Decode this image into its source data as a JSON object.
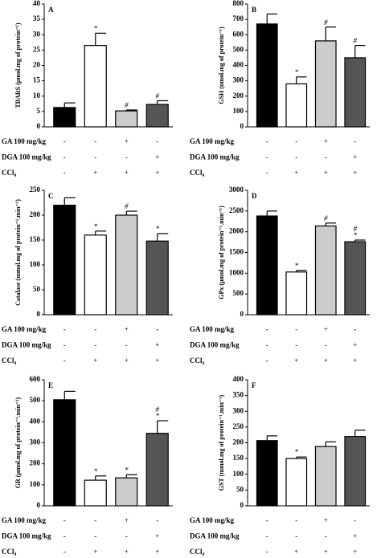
{
  "chart_data": [
    {
      "type": "bar",
      "panel_label": "A",
      "y_label": "TBARS (μmol.mg of protein⁻¹)",
      "values": [
        6.3,
        26.5,
        5.2,
        7.3
      ],
      "errors": [
        1.5,
        4,
        0.3,
        1.2
      ],
      "colors": [
        "#000000",
        "#ffffff",
        "#cccccc",
        "#555555"
      ],
      "annotations": [
        null,
        [
          "*"
        ],
        [
          "#"
        ],
        [
          "#"
        ]
      ],
      "ylim": [
        0,
        40
      ],
      "yticks": [
        0,
        5,
        10,
        15,
        20,
        25,
        30,
        35,
        40
      ],
      "treatments": [
        {
          "label": "GA 100 mg/kg",
          "marks": [
            "-",
            "-",
            "+",
            "-"
          ]
        },
        {
          "label": "DGA 100 mg/kg",
          "marks": [
            "-",
            "-",
            "-",
            "+"
          ]
        },
        {
          "label": "CCl₄",
          "marks": [
            "-",
            "+",
            "+",
            "+"
          ]
        }
      ]
    },
    {
      "type": "bar",
      "panel_label": "B",
      "y_label": "GSH (nmol.mg of protein⁻¹)",
      "values": [
        670,
        280,
        560,
        450
      ],
      "errors": [
        65,
        45,
        90,
        80
      ],
      "colors": [
        "#000000",
        "#ffffff",
        "#cccccc",
        "#555555"
      ],
      "annotations": [
        null,
        [
          "*"
        ],
        [
          "#"
        ],
        [
          "#"
        ]
      ],
      "ylim": [
        0,
        800
      ],
      "yticks": [
        0,
        100,
        200,
        300,
        400,
        500,
        600,
        700,
        800
      ],
      "treatments": [
        {
          "label": "GA 100 mg/kg",
          "marks": [
            "-",
            "-",
            "+",
            "-"
          ]
        },
        {
          "label": "DGA 100 mg/kg",
          "marks": [
            "-",
            "-",
            "-",
            "+"
          ]
        },
        {
          "label": "CCl₄",
          "marks": [
            "-",
            "+",
            "+",
            "+"
          ]
        }
      ]
    },
    {
      "type": "bar",
      "panel_label": "C",
      "y_label": "Catalase (mmol.mg of protein⁻¹.min⁻¹)",
      "values": [
        220,
        160,
        200,
        148
      ],
      "errors": [
        15,
        8,
        8,
        15
      ],
      "colors": [
        "#000000",
        "#ffffff",
        "#cccccc",
        "#555555"
      ],
      "annotations": [
        null,
        [
          "*"
        ],
        [
          "#"
        ],
        [
          "*"
        ]
      ],
      "ylim": [
        0,
        250
      ],
      "yticks": [
        0,
        50,
        100,
        150,
        200,
        250
      ],
      "treatments": [
        {
          "label": "GA 100 mg/kg",
          "marks": [
            "-",
            "-",
            "+",
            "-"
          ]
        },
        {
          "label": "DGA 100 mg/kg",
          "marks": [
            "-",
            "-",
            "-",
            "+"
          ]
        },
        {
          "label": "CCl₄",
          "marks": [
            "-",
            "+",
            "+",
            "+"
          ]
        }
      ]
    },
    {
      "type": "bar",
      "panel_label": "D",
      "y_label": "GPx (μmol.mg of protein⁻¹.min⁻¹)",
      "values": [
        2380,
        1030,
        2140,
        1760
      ],
      "errors": [
        120,
        40,
        70,
        40
      ],
      "colors": [
        "#000000",
        "#ffffff",
        "#cccccc",
        "#555555"
      ],
      "annotations": [
        null,
        [
          "*"
        ],
        [
          "#"
        ],
        [
          "#",
          "*"
        ]
      ],
      "ylim": [
        0,
        3000
      ],
      "yticks": [
        0,
        500,
        1000,
        1500,
        2000,
        2500,
        3000
      ],
      "treatments": [
        {
          "label": "GA 100 mg/kg",
          "marks": [
            "-",
            "-",
            "+",
            "-"
          ]
        },
        {
          "label": "DGA 100 mg/kg",
          "marks": [
            "-",
            "-",
            "-",
            "+"
          ]
        },
        {
          "label": "CCl₄",
          "marks": [
            "-",
            "+",
            "+",
            "+"
          ]
        }
      ]
    },
    {
      "type": "bar",
      "panel_label": "E",
      "y_label": "GR (μmol.mg of protein⁻¹.min⁻¹)",
      "values": [
        505,
        122,
        133,
        345
      ],
      "errors": [
        40,
        20,
        15,
        60
      ],
      "colors": [
        "#000000",
        "#ffffff",
        "#cccccc",
        "#555555"
      ],
      "annotations": [
        null,
        [
          "*"
        ],
        [
          "*"
        ],
        [
          "#",
          "*"
        ]
      ],
      "ylim": [
        0,
        600
      ],
      "yticks": [
        0,
        100,
        200,
        300,
        400,
        500,
        600
      ],
      "treatments": [
        {
          "label": "GA 100 mg/kg",
          "marks": [
            "-",
            "-",
            "+",
            "-"
          ]
        },
        {
          "label": "DGA 100 mg/kg",
          "marks": [
            "-",
            "-",
            "-",
            "+"
          ]
        },
        {
          "label": "CCl₄",
          "marks": [
            "-",
            "+",
            "+",
            "+"
          ]
        }
      ]
    },
    {
      "type": "bar",
      "panel_label": "F",
      "y_label": "GST (mmol.mg of protein⁻¹.min⁻¹)",
      "values": [
        207,
        150,
        188,
        220
      ],
      "errors": [
        15,
        5,
        15,
        20
      ],
      "colors": [
        "#000000",
        "#ffffff",
        "#cccccc",
        "#555555"
      ],
      "annotations": [
        null,
        [
          "*"
        ],
        null,
        null
      ],
      "ylim": [
        0,
        400
      ],
      "yticks": [
        0,
        50,
        100,
        150,
        200,
        250,
        300,
        350,
        400
      ],
      "treatments": [
        {
          "label": "GA 100 mg/kg",
          "marks": [
            "-",
            "-",
            "+",
            "-"
          ]
        },
        {
          "label": "DGA 100 mg/kg",
          "marks": [
            "-",
            "-",
            "-",
            "+"
          ]
        },
        {
          "label": "CCl₄",
          "marks": [
            "-",
            "+",
            "+",
            "+"
          ]
        }
      ]
    }
  ]
}
